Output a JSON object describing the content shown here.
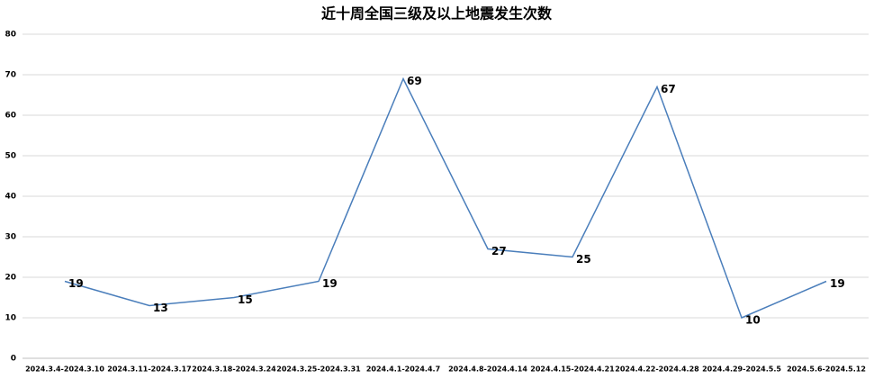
{
  "chart_data": {
    "type": "line",
    "title": "近十周全国三级及以上地震发生次数",
    "categories": [
      "2024.3.4-2024.3.10",
      "2024.3.11-2024.3.17",
      "2024.3.18-2024.3.24",
      "2024.3.25-2024.3.31",
      "2024.4.1-2024.4.7",
      "2024.4.8-2024.4.14",
      "2024.4.15-2024.4.21",
      "2024.4.22-2024.4.28",
      "2024.4.29-2024.5.5",
      "2024.5.6-2024.5.12"
    ],
    "values": [
      19,
      13,
      15,
      19,
      69,
      27,
      25,
      67,
      10,
      19
    ],
    "color": "#4a7ebb",
    "ylim": [
      0,
      80
    ],
    "yticks": [
      0,
      10,
      20,
      30,
      40,
      50,
      60,
      70,
      80
    ],
    "grid": true
  }
}
